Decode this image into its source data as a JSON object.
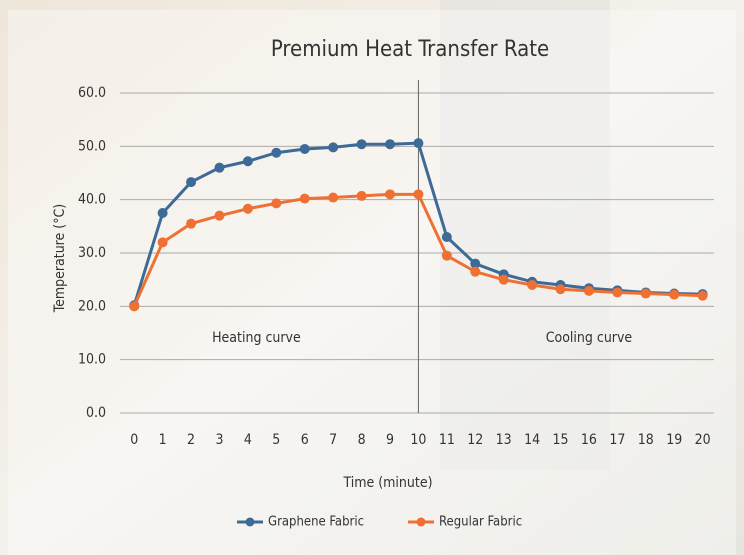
{
  "chart_data": {
    "type": "line",
    "title": "Premium Heat Transfer Rate",
    "x_label": "Time (minute)",
    "y_label": "Temperature (°C)",
    "annotations": [
      {
        "text": "Heating curve",
        "x": 4.3
      },
      {
        "text": "Cooling curve",
        "x": 16
      }
    ],
    "divider_x": 10,
    "x": [
      0,
      1,
      2,
      3,
      4,
      5,
      6,
      7,
      8,
      9,
      10,
      11,
      12,
      13,
      14,
      15,
      16,
      17,
      18,
      19,
      20
    ],
    "series": [
      {
        "name": "Graphene Fabric",
        "color": "#3d6a96",
        "values": [
          20.2,
          37.5,
          43.3,
          46,
          47.2,
          48.8,
          49.5,
          49.8,
          50.4,
          50.4,
          50.6,
          33,
          28,
          26,
          24.6,
          24,
          23.4,
          23,
          22.6,
          22.4,
          22.3
        ]
      },
      {
        "name": "Regular Fabric",
        "color": "#ee7133",
        "values": [
          20,
          32,
          35.5,
          37,
          38.3,
          39.3,
          40.2,
          40.4,
          40.7,
          41,
          41,
          29.5,
          26.5,
          25,
          24,
          23.2,
          22.9,
          22.6,
          22.4,
          22.2,
          22
        ]
      }
    ],
    "xlim": [
      -0.5,
      20.4
    ],
    "xticks": [
      0,
      1,
      2,
      3,
      4,
      5,
      6,
      7,
      8,
      9,
      10,
      11,
      12,
      13,
      14,
      15,
      16,
      17,
      18,
      19,
      20
    ],
    "ylim": [
      0,
      60
    ],
    "yticks": [
      {
        "value": 0,
        "label": "0.0"
      },
      {
        "value": 10,
        "label": "10.0"
      },
      {
        "value": 20,
        "label": "20.0"
      },
      {
        "value": 30,
        "label": "30.0"
      },
      {
        "value": 40,
        "label": "40.0"
      },
      {
        "value": 50,
        "label": "50.0"
      },
      {
        "value": 60,
        "label": "60.0"
      }
    ],
    "grid": true,
    "legend": "bottom"
  }
}
